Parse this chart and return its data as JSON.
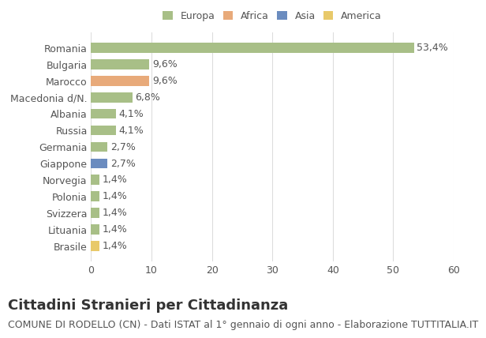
{
  "categories": [
    "Brasile",
    "Lituania",
    "Svizzera",
    "Polonia",
    "Norvegia",
    "Giappone",
    "Germania",
    "Russia",
    "Albania",
    "Macedonia d/N.",
    "Marocco",
    "Bulgaria",
    "Romania"
  ],
  "values": [
    1.4,
    1.4,
    1.4,
    1.4,
    1.4,
    2.7,
    2.7,
    4.1,
    4.1,
    6.8,
    9.6,
    9.6,
    53.4
  ],
  "colors": [
    "#e8c96a",
    "#a8bf87",
    "#a8bf87",
    "#a8bf87",
    "#a8bf87",
    "#6b8cbf",
    "#a8bf87",
    "#a8bf87",
    "#a8bf87",
    "#a8bf87",
    "#e8aa7a",
    "#a8bf87",
    "#a8bf87"
  ],
  "labels": [
    "1,4%",
    "1,4%",
    "1,4%",
    "1,4%",
    "1,4%",
    "2,7%",
    "2,7%",
    "4,1%",
    "4,1%",
    "6,8%",
    "9,6%",
    "9,6%",
    "53,4%"
  ],
  "xlim": [
    0,
    60
  ],
  "xticks": [
    0,
    10,
    20,
    30,
    40,
    50,
    60
  ],
  "legend_labels": [
    "Europa",
    "Africa",
    "Asia",
    "America"
  ],
  "legend_colors": [
    "#a8bf87",
    "#e8aa7a",
    "#6b8cbf",
    "#e8c96a"
  ],
  "title": "Cittadini Stranieri per Cittadinanza",
  "subtitle": "COMUNE DI RODELLO (CN) - Dati ISTAT al 1° gennaio di ogni anno - Elaborazione TUTTITALIA.IT",
  "background_color": "#ffffff",
  "grid_color": "#dddddd",
  "bar_height": 0.6,
  "title_fontsize": 13,
  "subtitle_fontsize": 9,
  "label_fontsize": 9,
  "tick_fontsize": 9
}
